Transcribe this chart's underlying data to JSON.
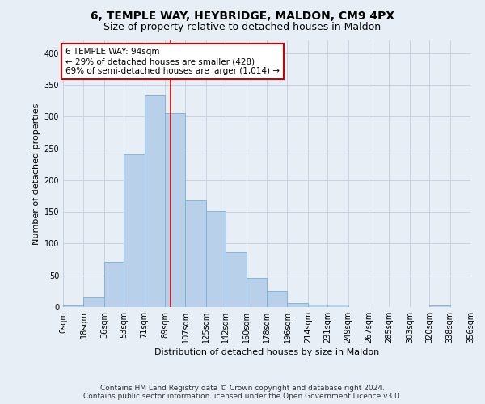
{
  "title1": "6, TEMPLE WAY, HEYBRIDGE, MALDON, CM9 4PX",
  "title2": "Size of property relative to detached houses in Maldon",
  "xlabel": "Distribution of detached houses by size in Maldon",
  "ylabel": "Number of detached properties",
  "annotation_line1": "6 TEMPLE WAY: 94sqm",
  "annotation_line2": "← 29% of detached houses are smaller (428)",
  "annotation_line3": "69% of semi-detached houses are larger (1,014) →",
  "bin_edges": [
    0,
    18,
    36,
    53,
    71,
    89,
    107,
    125,
    142,
    160,
    178,
    196,
    214,
    231,
    249,
    267,
    285,
    303,
    320,
    338,
    356
  ],
  "bar_heights": [
    3,
    15,
    71,
    240,
    333,
    305,
    168,
    152,
    87,
    46,
    26,
    7,
    4,
    4,
    0,
    0,
    0,
    0,
    2,
    0
  ],
  "bar_color": "#b8d0ea",
  "bar_edge_color": "#7aafd4",
  "vline_color": "#cc0000",
  "vline_x": 94,
  "annotation_box_facecolor": "#ffffff",
  "annotation_box_edgecolor": "#cc0000",
  "grid_color": "#c8d4e4",
  "background_color": "#e8eef6",
  "ylim_max": 420,
  "yticks": [
    0,
    50,
    100,
    150,
    200,
    250,
    300,
    350,
    400
  ],
  "tick_labels": [
    "0sqm",
    "18sqm",
    "36sqm",
    "53sqm",
    "71sqm",
    "89sqm",
    "107sqm",
    "125sqm",
    "142sqm",
    "160sqm",
    "178sqm",
    "196sqm",
    "214sqm",
    "231sqm",
    "249sqm",
    "267sqm",
    "285sqm",
    "303sqm",
    "320sqm",
    "338sqm",
    "356sqm"
  ],
  "footer_line1": "Contains HM Land Registry data © Crown copyright and database right 2024.",
  "footer_line2": "Contains public sector information licensed under the Open Government Licence v3.0.",
  "title1_fontsize": 10,
  "title2_fontsize": 9,
  "xlabel_fontsize": 8,
  "ylabel_fontsize": 8,
  "tick_fontsize": 7,
  "annotation_fontsize": 7.5,
  "footer_fontsize": 6.5
}
